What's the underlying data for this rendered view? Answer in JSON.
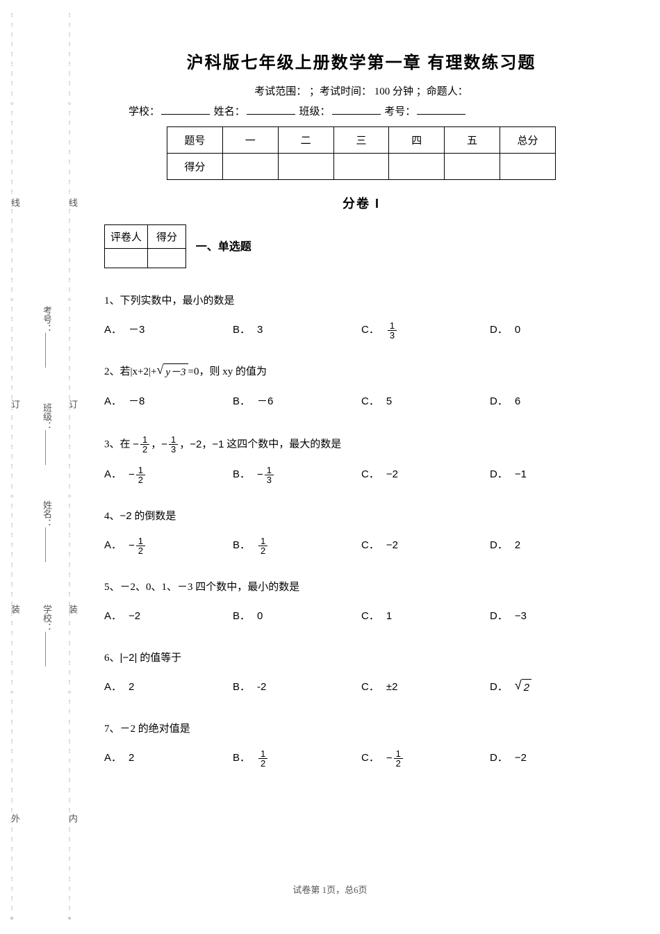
{
  "title": "沪科版七年级上册数学第一章  有理数练习题",
  "exam_info": {
    "scope_label": "考试范围：",
    "scope_value": "",
    "time_label": "；考试时间：",
    "time_value": "100 分钟",
    "author_label": "；命题人：",
    "author_value": ""
  },
  "student_info": {
    "school_label": "学校：",
    "name_label": "姓名：",
    "class_label": "班级：",
    "id_label": "考号："
  },
  "score_table": {
    "header_num": "题号",
    "header_score": "得分",
    "cols": [
      "一",
      "二",
      "三",
      "四",
      "五",
      "总分"
    ]
  },
  "section_title": "分卷 I",
  "grader_table": {
    "grader": "评卷人",
    "score": "得分"
  },
  "section1_label": "一、单选题",
  "questions": [
    {
      "num": "1、",
      "stem": "下列实数中，最小的数是",
      "choices": {
        "a": "－3",
        "b": "3",
        "c_frac": {
          "num": "1",
          "den": "3"
        },
        "d": "0"
      }
    },
    {
      "num": "2、",
      "stem_pre": "若|x+2|+",
      "stem_sqrt": "y－3",
      "stem_post": "=0，则 xy 的值为",
      "choices": {
        "a": "－8",
        "b": "－6",
        "c": "5",
        "d": "6"
      }
    },
    {
      "num": "3、",
      "stem_pre": "在 ",
      "stem_seq_a_num": "1",
      "stem_seq_a_den": "2",
      "stem_seq_b_num": "1",
      "stem_seq_b_den": "3",
      "stem_seq_c": "−2",
      "stem_seq_d": "−1",
      "stem_post": " 这四个数中，最大的数是",
      "choices": {
        "a_neg_frac": {
          "num": "1",
          "den": "2"
        },
        "b_neg_frac": {
          "num": "1",
          "den": "3"
        },
        "c": "−2",
        "d": "−1"
      }
    },
    {
      "num": "4、",
      "stem_val": "−2",
      "stem_post": " 的倒数是",
      "choices": {
        "a_neg_frac": {
          "num": "1",
          "den": "2"
        },
        "b_frac": {
          "num": "1",
          "den": "2"
        },
        "c": "−2",
        "d": "2"
      }
    },
    {
      "num": "5、",
      "stem": "－2、0、1、－3 四个数中，最小的数是",
      "choices": {
        "a": "−2",
        "b": "0",
        "c": "1",
        "d": "−3"
      }
    },
    {
      "num": "6、",
      "stem_abs": "−2",
      "stem_post": " 的值等于",
      "choices": {
        "a": "2",
        "b": "-2",
        "c": "±2",
        "d_sqrt": "2"
      }
    },
    {
      "num": "7、",
      "stem": "－2 的绝对值是",
      "choices": {
        "a": "2",
        "b_frac": {
          "num": "1",
          "den": "2"
        },
        "c_neg_frac": {
          "num": "1",
          "den": "2"
        },
        "d": "−2"
      }
    }
  ],
  "footer": {
    "page": "试卷第 1页，总6页"
  },
  "binding": {
    "outer": "外",
    "inner": "内",
    "zhuang": "装",
    "ding": "订",
    "xian": "线",
    "school": "学校：",
    "name": "姓名：",
    "class": "班级：",
    "id": "考号："
  },
  "style": {
    "dot": "⋮",
    "circle": "○",
    "small_o": "o"
  }
}
